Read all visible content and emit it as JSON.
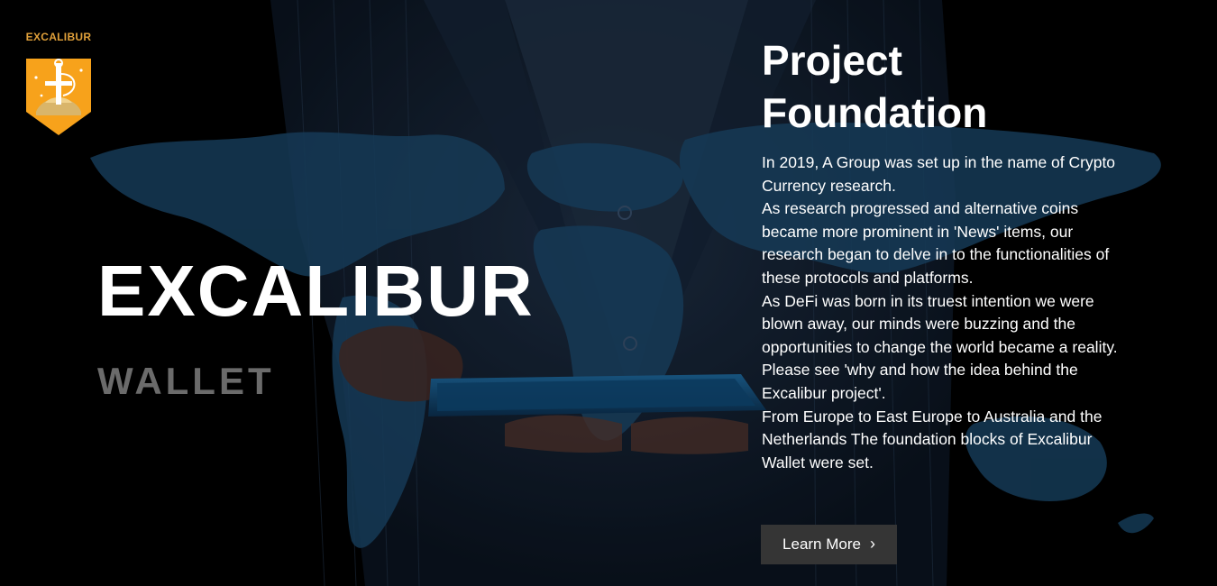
{
  "logo": {
    "text": "EXCALIBUR",
    "icon": "sword-shield-icon",
    "colors": {
      "shield": "#f7a21b",
      "gold": "#c9a24a"
    }
  },
  "hero": {
    "title": "EXCALIBUR",
    "subtitle": "WALLET"
  },
  "panel": {
    "title": "Project Foundation",
    "paragraphs": [
      "In 2019, A Group was set up in the name of Crypto Currency research.",
      "As research progressed and alternative coins became more prominent in 'News' items, our research began to delve in to the functionalities of these protocols and platforms.",
      "As DeFi was born in its truest intention we were blown away, our minds were buzzing and the opportunities to change the world became a reality. Please see 'why and how the idea behind the Excalibur project'.",
      "From Europe to East Europe to Australia and the Netherlands The foundation blocks of Excalibur Wallet were set."
    ],
    "button_label": "Learn More",
    "button_icon": "chevron-right-icon"
  },
  "colors": {
    "background": "#000000",
    "map": "#1c4a6e",
    "button_bg": "#353535",
    "subtitle": "#6b6b6b"
  }
}
